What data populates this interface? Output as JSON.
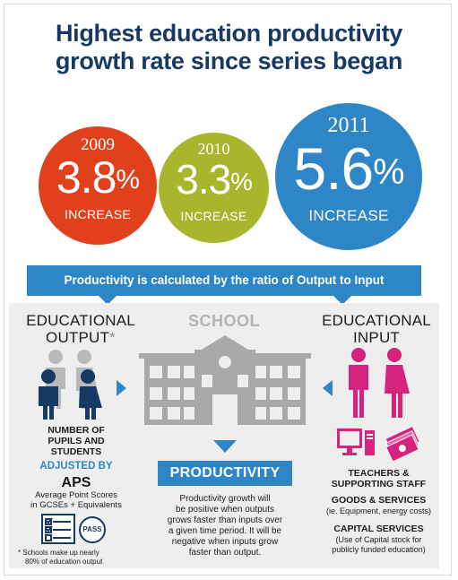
{
  "title": {
    "line1": "Highest education productivity",
    "line2": "growth rate since series began"
  },
  "stats": [
    {
      "year": "2009",
      "value": "3.8",
      "unit": "%",
      "label": "INCREASE",
      "color": "#e0401b"
    },
    {
      "year": "2010",
      "value": "3.3",
      "unit": "%",
      "label": "INCREASE",
      "color": "#a8b52d"
    },
    {
      "year": "2011",
      "value": "5.6",
      "unit": "%",
      "label": "INCREASE",
      "color": "#2e86c6"
    }
  ],
  "banner": "Productivity is calculated by the ratio of Output to Input",
  "output": {
    "heading_line1": "EDUCATIONAL",
    "heading_line2": "OUTPUT",
    "asterisk": "*",
    "pupils_line1": "NUMBER OF",
    "pupils_line2": "PUPILS AND",
    "pupils_line3": "STUDENTS",
    "adjusted_by": "ADJUSTED BY",
    "aps": "APS",
    "aps_line1": "Average Point Scores",
    "aps_line2": "in GCSEs + Equivalents",
    "stamp": "PASS",
    "footnote_line1": "* Schools make up nearly",
    "footnote_line2": "80% of education output"
  },
  "school": {
    "heading": "SCHOOL"
  },
  "productivity": {
    "label": "PRODUCTIVITY",
    "desc_line1": "Productivity growth will",
    "desc_line2": "be positive when outputs",
    "desc_line3": "grows faster than inputs over",
    "desc_line4": "a given time period. It will be",
    "desc_line5": "negative when inputs grow",
    "desc_line6": "faster than output."
  },
  "input": {
    "heading_line1": "EDUCATIONAL",
    "heading_line2": "INPUT",
    "teachers_line1": "TEACHERS &",
    "teachers_line2": "SUPPORTING STAFF",
    "goods": "GOODS & SERVICES",
    "goods_desc": "(ie. Equipment, energy costs)",
    "capital": "CAPITAL SERVICES",
    "capital_desc_line1": "(Use of Capital stock for",
    "capital_desc_line2": "publicly funded education)"
  },
  "colors": {
    "navy": "#163a63",
    "blue": "#2e86c6",
    "magenta": "#d6247e",
    "grey": "#a9a9a9"
  },
  "icons": [
    "people-icon",
    "school-building-icon",
    "computer-icon",
    "money-icon",
    "exam-paper-icon",
    "pass-stamp-icon"
  ]
}
